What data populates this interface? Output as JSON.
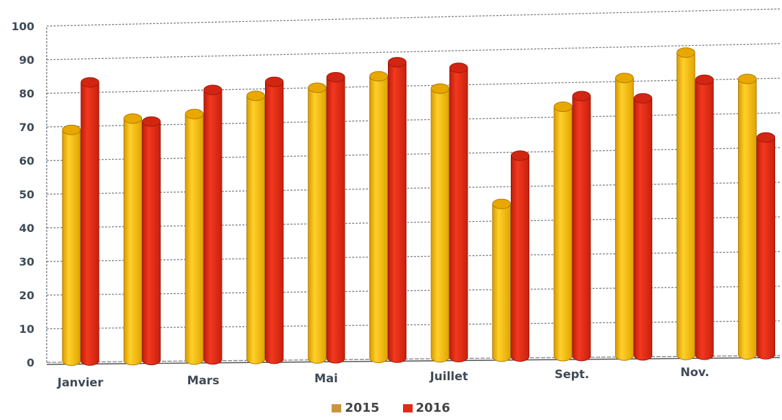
{
  "chart_data": {
    "type": "bar",
    "categories": [
      "Janvier",
      "",
      "Mars",
      "",
      "Mai",
      "",
      "Juillet",
      "",
      "Sept.",
      "",
      "Nov.",
      ""
    ],
    "series": [
      {
        "name": "2015",
        "values": [
          69,
          72,
          73,
          78,
          80,
          83,
          79,
          45,
          73,
          81,
          88,
          80
        ],
        "color": "#f5b800"
      },
      {
        "name": "2016",
        "values": [
          83,
          71,
          80,
          82,
          83,
          87,
          85,
          59,
          76,
          75,
          80,
          63
        ],
        "color": "#e32a14"
      }
    ],
    "y_ticks": [
      "0",
      "10",
      "20",
      "30",
      "40",
      "50",
      "60",
      "70",
      "80",
      "90",
      "100"
    ],
    "ylim": [
      0,
      100
    ],
    "grid": true,
    "legend_position": "bottom"
  }
}
